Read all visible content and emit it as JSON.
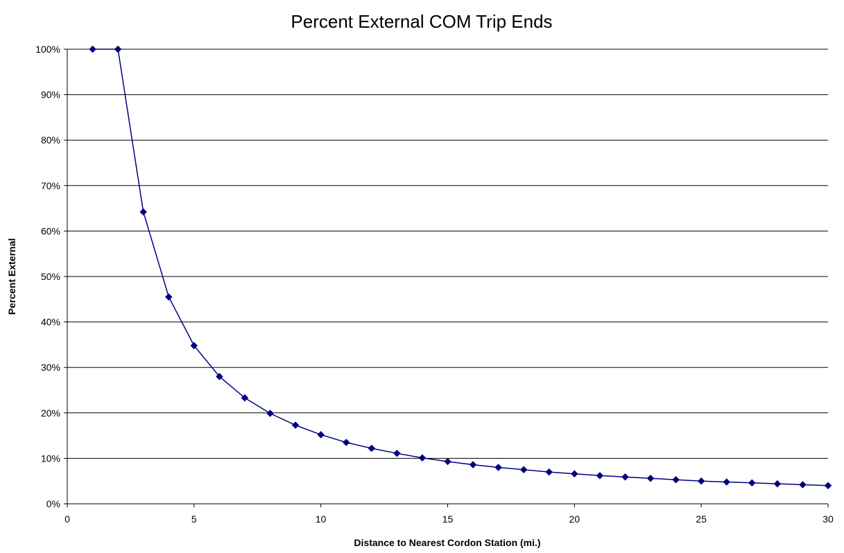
{
  "chart_data": {
    "type": "line",
    "title": "Percent External COM Trip Ends",
    "xlabel": "Distance to Nearest Cordon Station (mi.)",
    "ylabel": "Percent External",
    "xlim": [
      0,
      30
    ],
    "ylim": [
      0,
      100
    ],
    "x_ticks": [
      0,
      5,
      10,
      15,
      20,
      25,
      30
    ],
    "y_ticks": [
      0,
      10,
      20,
      30,
      40,
      50,
      60,
      70,
      80,
      90,
      100
    ],
    "y_tick_labels": [
      "0%",
      "10%",
      "20%",
      "30%",
      "40%",
      "50%",
      "60%",
      "70%",
      "80%",
      "90%",
      "100%"
    ],
    "x_tick_labels": [
      "0",
      "5",
      "10",
      "15",
      "20",
      "25",
      "30"
    ],
    "grid": "horizontal",
    "legend": "none",
    "colors": {
      "series": "#000080",
      "grid": "#000000"
    },
    "series": [
      {
        "marker": "diamond",
        "x": [
          1,
          2,
          3,
          4,
          5,
          6,
          7,
          8,
          9,
          10,
          11,
          12,
          13,
          14,
          15,
          16,
          17,
          18,
          19,
          20,
          21,
          22,
          23,
          24,
          25,
          26,
          27,
          28,
          29,
          30
        ],
        "values": [
          100,
          100,
          64.2,
          45.5,
          34.8,
          28.0,
          23.3,
          19.9,
          17.3,
          15.2,
          13.5,
          12.2,
          11.1,
          10.1,
          9.3,
          8.6,
          8.0,
          7.5,
          7.0,
          6.6,
          6.2,
          5.9,
          5.6,
          5.3,
          5.0,
          4.8,
          4.6,
          4.4,
          4.2,
          4.0
        ]
      }
    ]
  }
}
